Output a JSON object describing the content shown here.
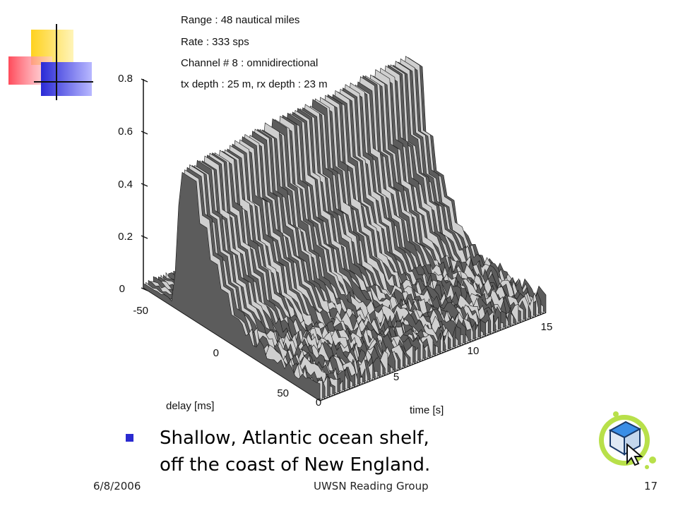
{
  "slide": {
    "info_lines": [
      "Range : 48 nautical miles",
      "Rate : 333 sps",
      "Channel # 8 : omnidirectional",
      "tx depth : 25 m, rx depth : 23 m"
    ],
    "bullets": [
      {
        "line1": "Shallow, Atlantic ocean shelf,",
        "line2": "off the coast of New England."
      }
    ],
    "footer": {
      "date": "6/8/2006",
      "center": "UWSN Reading Group",
      "page": "17"
    }
  },
  "chart_data": {
    "type": "surface",
    "z_ticks": [
      "0",
      "0.2",
      "0.4",
      "0.6",
      "0.8"
    ],
    "delay_ticks": [
      "-50",
      "0",
      "50"
    ],
    "time_ticks": [
      "0",
      "5",
      "10",
      "15"
    ],
    "xlabel": "time [s]",
    "ylabel": "delay [ms]",
    "zlim": [
      0,
      0.8
    ],
    "time_range": [
      0,
      15
    ],
    "delay_range": [
      -50,
      50
    ],
    "main_arrival_peak": [
      0.55,
      0.56,
      0.58,
      0.6,
      0.61,
      0.62,
      0.63,
      0.64
    ],
    "secondary_arrivals": [
      0.4,
      0.28,
      0.2,
      0.12
    ]
  },
  "colors": {
    "bullet": "#2a2ad0",
    "surface": "#6a6a6a",
    "mesh": "#1a1a1a"
  }
}
